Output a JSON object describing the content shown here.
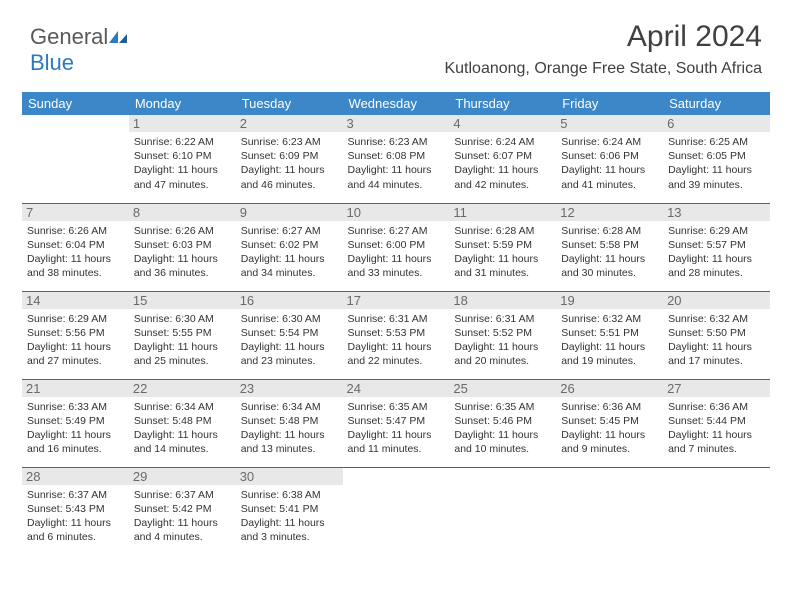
{
  "brand": {
    "part1": "General",
    "part2": "Blue"
  },
  "title": "April 2024",
  "location": "Kutloanong, Orange Free State, South Africa",
  "colors": {
    "header_bg": "#3b87c8",
    "header_text": "#ffffff",
    "daynum_bg": "#e8e8e8",
    "daynum_text": "#6a6a6a",
    "rule": "#2b6aa3",
    "body_text": "#333333",
    "title_text": "#404040",
    "logo_gray": "#5a5a5a",
    "logo_blue": "#2b7bbf"
  },
  "typography": {
    "title_fontsize": 30,
    "location_fontsize": 16,
    "weekday_fontsize": 13,
    "daynum_fontsize": 13,
    "cell_fontsize": 10.5
  },
  "weekdays": [
    "Sunday",
    "Monday",
    "Tuesday",
    "Wednesday",
    "Thursday",
    "Friday",
    "Saturday"
  ],
  "weeks": [
    [
      {
        "n": "",
        "lines": []
      },
      {
        "n": "1",
        "lines": [
          "Sunrise: 6:22 AM",
          "Sunset: 6:10 PM",
          "Daylight: 11 hours and 47 minutes."
        ]
      },
      {
        "n": "2",
        "lines": [
          "Sunrise: 6:23 AM",
          "Sunset: 6:09 PM",
          "Daylight: 11 hours and 46 minutes."
        ]
      },
      {
        "n": "3",
        "lines": [
          "Sunrise: 6:23 AM",
          "Sunset: 6:08 PM",
          "Daylight: 11 hours and 44 minutes."
        ]
      },
      {
        "n": "4",
        "lines": [
          "Sunrise: 6:24 AM",
          "Sunset: 6:07 PM",
          "Daylight: 11 hours and 42 minutes."
        ]
      },
      {
        "n": "5",
        "lines": [
          "Sunrise: 6:24 AM",
          "Sunset: 6:06 PM",
          "Daylight: 11 hours and 41 minutes."
        ]
      },
      {
        "n": "6",
        "lines": [
          "Sunrise: 6:25 AM",
          "Sunset: 6:05 PM",
          "Daylight: 11 hours and 39 minutes."
        ]
      }
    ],
    [
      {
        "n": "7",
        "lines": [
          "Sunrise: 6:26 AM",
          "Sunset: 6:04 PM",
          "Daylight: 11 hours and 38 minutes."
        ]
      },
      {
        "n": "8",
        "lines": [
          "Sunrise: 6:26 AM",
          "Sunset: 6:03 PM",
          "Daylight: 11 hours and 36 minutes."
        ]
      },
      {
        "n": "9",
        "lines": [
          "Sunrise: 6:27 AM",
          "Sunset: 6:02 PM",
          "Daylight: 11 hours and 34 minutes."
        ]
      },
      {
        "n": "10",
        "lines": [
          "Sunrise: 6:27 AM",
          "Sunset: 6:00 PM",
          "Daylight: 11 hours and 33 minutes."
        ]
      },
      {
        "n": "11",
        "lines": [
          "Sunrise: 6:28 AM",
          "Sunset: 5:59 PM",
          "Daylight: 11 hours and 31 minutes."
        ]
      },
      {
        "n": "12",
        "lines": [
          "Sunrise: 6:28 AM",
          "Sunset: 5:58 PM",
          "Daylight: 11 hours and 30 minutes."
        ]
      },
      {
        "n": "13",
        "lines": [
          "Sunrise: 6:29 AM",
          "Sunset: 5:57 PM",
          "Daylight: 11 hours and 28 minutes."
        ]
      }
    ],
    [
      {
        "n": "14",
        "lines": [
          "Sunrise: 6:29 AM",
          "Sunset: 5:56 PM",
          "Daylight: 11 hours and 27 minutes."
        ]
      },
      {
        "n": "15",
        "lines": [
          "Sunrise: 6:30 AM",
          "Sunset: 5:55 PM",
          "Daylight: 11 hours and 25 minutes."
        ]
      },
      {
        "n": "16",
        "lines": [
          "Sunrise: 6:30 AM",
          "Sunset: 5:54 PM",
          "Daylight: 11 hours and 23 minutes."
        ]
      },
      {
        "n": "17",
        "lines": [
          "Sunrise: 6:31 AM",
          "Sunset: 5:53 PM",
          "Daylight: 11 hours and 22 minutes."
        ]
      },
      {
        "n": "18",
        "lines": [
          "Sunrise: 6:31 AM",
          "Sunset: 5:52 PM",
          "Daylight: 11 hours and 20 minutes."
        ]
      },
      {
        "n": "19",
        "lines": [
          "Sunrise: 6:32 AM",
          "Sunset: 5:51 PM",
          "Daylight: 11 hours and 19 minutes."
        ]
      },
      {
        "n": "20",
        "lines": [
          "Sunrise: 6:32 AM",
          "Sunset: 5:50 PM",
          "Daylight: 11 hours and 17 minutes."
        ]
      }
    ],
    [
      {
        "n": "21",
        "lines": [
          "Sunrise: 6:33 AM",
          "Sunset: 5:49 PM",
          "Daylight: 11 hours and 16 minutes."
        ]
      },
      {
        "n": "22",
        "lines": [
          "Sunrise: 6:34 AM",
          "Sunset: 5:48 PM",
          "Daylight: 11 hours and 14 minutes."
        ]
      },
      {
        "n": "23",
        "lines": [
          "Sunrise: 6:34 AM",
          "Sunset: 5:48 PM",
          "Daylight: 11 hours and 13 minutes."
        ]
      },
      {
        "n": "24",
        "lines": [
          "Sunrise: 6:35 AM",
          "Sunset: 5:47 PM",
          "Daylight: 11 hours and 11 minutes."
        ]
      },
      {
        "n": "25",
        "lines": [
          "Sunrise: 6:35 AM",
          "Sunset: 5:46 PM",
          "Daylight: 11 hours and 10 minutes."
        ]
      },
      {
        "n": "26",
        "lines": [
          "Sunrise: 6:36 AM",
          "Sunset: 5:45 PM",
          "Daylight: 11 hours and 9 minutes."
        ]
      },
      {
        "n": "27",
        "lines": [
          "Sunrise: 6:36 AM",
          "Sunset: 5:44 PM",
          "Daylight: 11 hours and 7 minutes."
        ]
      }
    ],
    [
      {
        "n": "28",
        "lines": [
          "Sunrise: 6:37 AM",
          "Sunset: 5:43 PM",
          "Daylight: 11 hours and 6 minutes."
        ]
      },
      {
        "n": "29",
        "lines": [
          "Sunrise: 6:37 AM",
          "Sunset: 5:42 PM",
          "Daylight: 11 hours and 4 minutes."
        ]
      },
      {
        "n": "30",
        "lines": [
          "Sunrise: 6:38 AM",
          "Sunset: 5:41 PM",
          "Daylight: 11 hours and 3 minutes."
        ]
      },
      {
        "n": "",
        "lines": []
      },
      {
        "n": "",
        "lines": []
      },
      {
        "n": "",
        "lines": []
      },
      {
        "n": "",
        "lines": []
      }
    ]
  ]
}
